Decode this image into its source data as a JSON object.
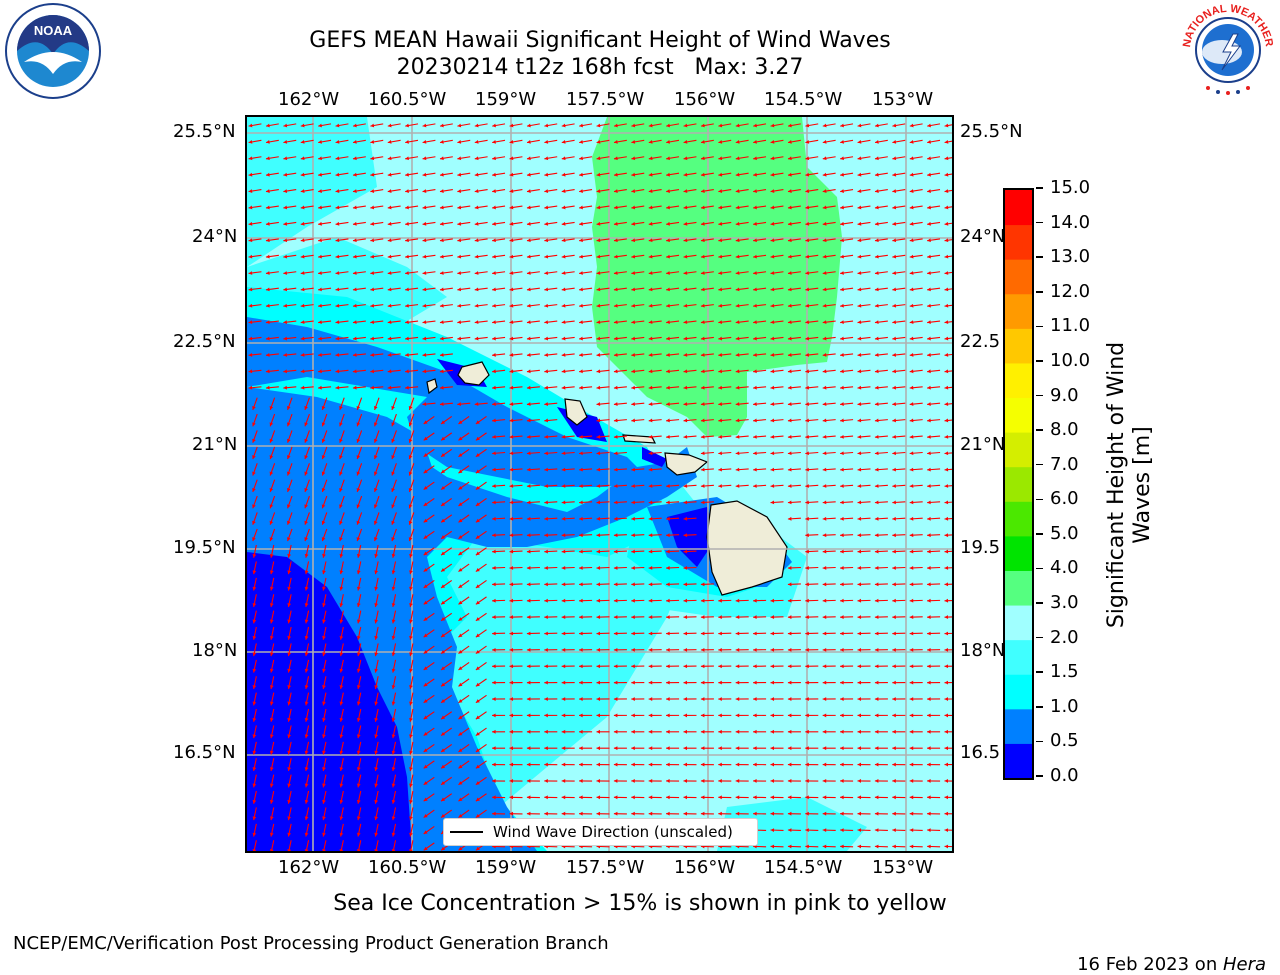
{
  "title": {
    "line1": "GEFS MEAN Hawaii Significant Height of Wind Waves",
    "line2": "20230214 t12z 168h fcst   Max: 3.27"
  },
  "map": {
    "lon_labels": [
      "162°W",
      "160.5°W",
      "159°W",
      "157.5°W",
      "156°W",
      "154.5°W",
      "153°W"
    ],
    "lat_labels_left": [
      "25.5°N",
      "24°N",
      "22.5°N",
      "21°N",
      "19.5°N",
      "18°N",
      "16.5°N"
    ],
    "lat_labels_right": [
      "25.5°N",
      "24°N",
      "22.5",
      "21°N",
      "19.5",
      "18°N",
      "16.5"
    ],
    "legend_label": "Wind Wave Direction (unscaled)",
    "colors": {
      "c0": "#0000ff",
      "c05": "#0080ff",
      "c1": "#00ffff",
      "c15": "#40ffff",
      "c2": "#a0ffff",
      "c3": "#55ff80",
      "land": "#efedd8",
      "arrow": "#ff0000",
      "grid": "#b0b0b0"
    }
  },
  "colorbar": {
    "label": "Significant Height of Wind Waves [m]",
    "label_line1": "Significant Height of Wind",
    "label_line2": "Waves [m]",
    "ticks": [
      "15.0",
      "14.0",
      "13.0",
      "12.0",
      "11.0",
      "10.0",
      "9.0",
      "8.0",
      "7.0",
      "6.0",
      "5.0",
      "4.0",
      "3.0",
      "2.0",
      "1.5",
      "1.0",
      "0.5",
      "0.0"
    ],
    "levels": [
      0.0,
      0.5,
      1.0,
      1.5,
      2.0,
      3.0,
      4.0,
      5.0,
      6.0,
      7.0,
      8.0,
      9.0,
      10.0,
      11.0,
      12.0,
      13.0,
      14.0,
      15.0
    ],
    "colors": [
      "#0000ff",
      "#0080ff",
      "#00ffff",
      "#40ffff",
      "#a0ffff",
      "#55ff80",
      "#00e400",
      "#4be800",
      "#9be800",
      "#d4ee00",
      "#f5ff00",
      "#fff000",
      "#ffc800",
      "#ff9a00",
      "#ff6a00",
      "#ff3500",
      "#ff0000"
    ]
  },
  "caption": "Sea Ice Concentration > 15% is shown in pink to yellow",
  "footer": {
    "left": "NCEP/EMC/Verification Post Processing Product Generation Branch",
    "date": "16 Feb 2023 on ",
    "machine": "Hera"
  },
  "logos": {
    "noaa": "NOAA",
    "nws": "NATIONAL WEATHER SERVICE"
  }
}
